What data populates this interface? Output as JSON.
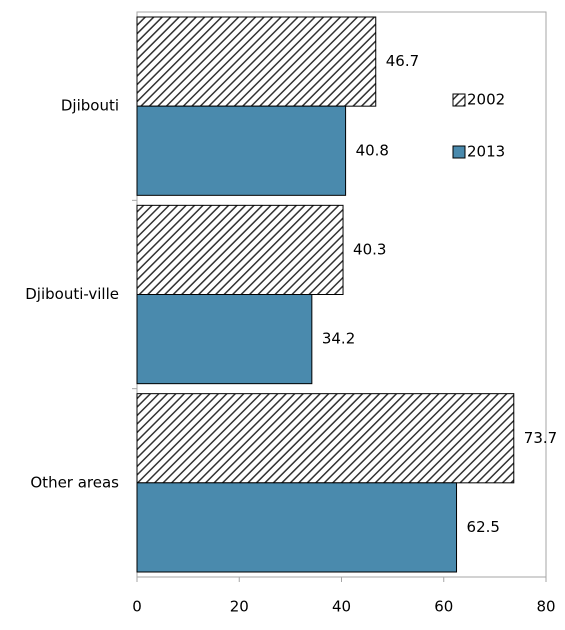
{
  "chart_data": {
    "type": "bar",
    "orientation": "horizontal",
    "categories": [
      "Djibouti",
      "Djibouti-ville",
      "Other areas"
    ],
    "series": [
      {
        "name": "2002",
        "color": "#333333",
        "hatch": true,
        "values": [
          46.7,
          40.3,
          73.7
        ]
      },
      {
        "name": "2013",
        "color": "#4a8aad",
        "hatch": false,
        "values": [
          40.8,
          34.2,
          62.5
        ]
      }
    ],
    "xlim": [
      0,
      80
    ],
    "xticks": [
      0,
      20,
      40,
      60,
      80
    ],
    "grid": false,
    "legend": "upper right"
  }
}
